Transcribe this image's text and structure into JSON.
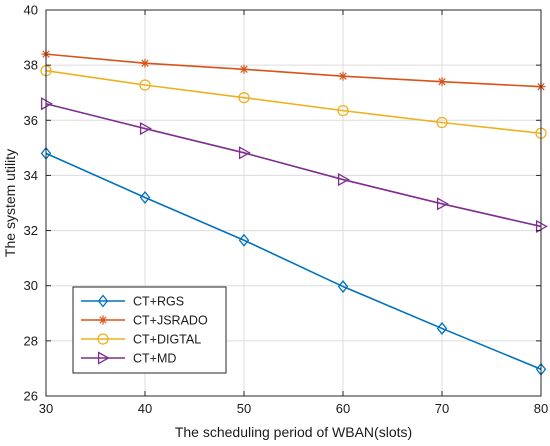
{
  "chart_data": {
    "type": "line",
    "title": "",
    "xlabel": "The scheduling period of WBAN(slots)",
    "ylabel": "The system utility",
    "x": [
      30,
      40,
      50,
      60,
      70,
      80
    ],
    "xlim": [
      30,
      80
    ],
    "ylim": [
      26,
      40
    ],
    "xticks": [
      "30",
      "40",
      "50",
      "60",
      "70",
      "80"
    ],
    "yticks": [
      "26",
      "28",
      "30",
      "32",
      "34",
      "36",
      "38",
      "40"
    ],
    "grid": true,
    "legend_position": "bottom-left",
    "series": [
      {
        "name": "CT+RGS",
        "values": [
          34.8,
          33.2,
          31.65,
          29.97,
          28.45,
          26.97
        ],
        "color": "#0072bd",
        "marker": "diamond"
      },
      {
        "name": "CT+JSRADO",
        "values": [
          38.4,
          38.07,
          37.85,
          37.6,
          37.4,
          37.22
        ],
        "color": "#d95319",
        "marker": "asterisk"
      },
      {
        "name": "CT+DIGTAL",
        "values": [
          37.8,
          37.28,
          36.82,
          36.35,
          35.92,
          35.53
        ],
        "color": "#edb120",
        "marker": "circle"
      },
      {
        "name": "CT+MD",
        "values": [
          36.6,
          35.7,
          34.82,
          33.85,
          32.97,
          32.15
        ],
        "color": "#7e2f8e",
        "marker": "triangle-right"
      }
    ]
  }
}
